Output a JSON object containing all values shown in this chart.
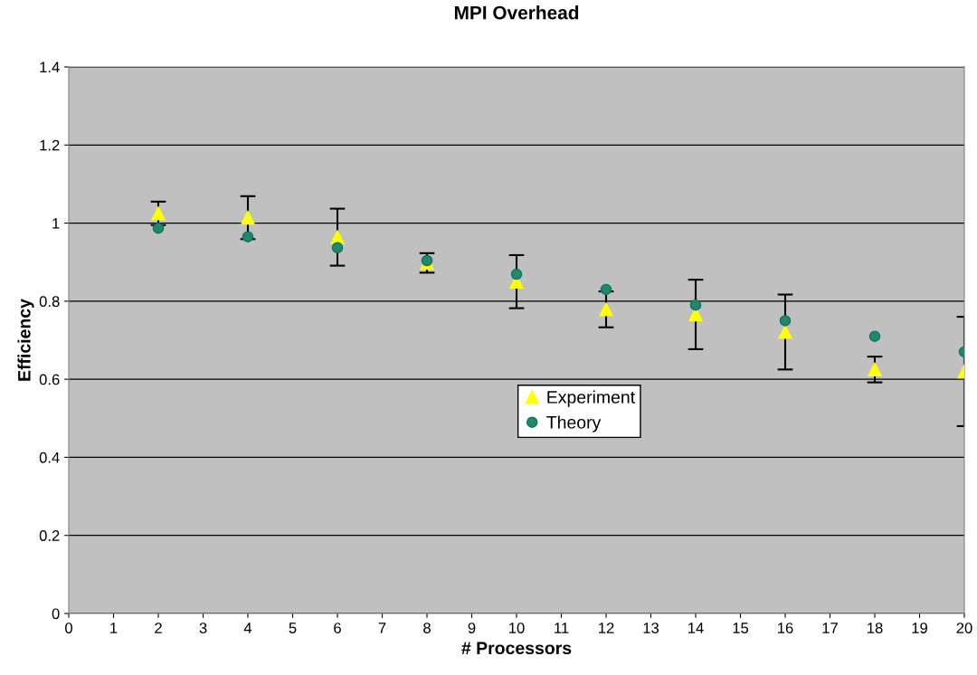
{
  "chart_data": {
    "type": "scatter",
    "title": "MPI Overhead",
    "xlabel": "# Processors",
    "ylabel": "Efficiency",
    "x": [
      2,
      4,
      6,
      8,
      10,
      12,
      14,
      16,
      18,
      20
    ],
    "series": [
      {
        "name": "Experiment",
        "color": "#ffff00",
        "marker": "triangle",
        "values": [
          1.025,
          1.014,
          0.964,
          0.898,
          0.85,
          0.779,
          0.766,
          0.721,
          0.625,
          0.62
        ],
        "errors": [
          0.03,
          0.055,
          0.073,
          0.025,
          0.068,
          0.046,
          0.089,
          0.096,
          0.033,
          0.14
        ]
      },
      {
        "name": "Theory",
        "color": "#20896a",
        "marker": "circle",
        "values": [
          0.987,
          0.965,
          0.937,
          0.904,
          0.869,
          0.83,
          0.79,
          0.75,
          0.71,
          0.67
        ]
      }
    ],
    "xlim": [
      0,
      20
    ],
    "xticks": [
      0,
      1,
      2,
      3,
      4,
      5,
      6,
      7,
      8,
      9,
      10,
      11,
      12,
      13,
      14,
      15,
      16,
      17,
      18,
      19,
      20
    ],
    "ylim": [
      0,
      1.4
    ],
    "yticks": [
      0,
      0.2,
      0.4,
      0.6,
      0.8,
      1,
      1.2,
      1.4
    ],
    "grid": "y",
    "legend": "center"
  }
}
